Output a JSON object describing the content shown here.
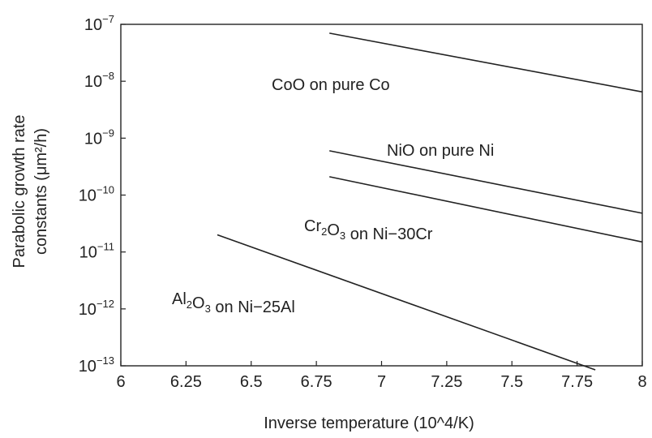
{
  "chart_data": {
    "type": "line",
    "title": "",
    "xlabel": "Inverse temperature (10^4/K)",
    "ylabel": [
      "Parabolic growth rate",
      "constants (μm²/h)"
    ],
    "x_scale": "linear",
    "y_scale": "log",
    "xlim": [
      6,
      8
    ],
    "ylim": [
      1e-13,
      1e-07
    ],
    "x_ticks": [
      "6",
      "6.25",
      "6.5",
      "6.75",
      "7",
      "7.25",
      "7.5",
      "7.75",
      "8"
    ],
    "y_ticks": [
      {
        "base": "10",
        "exp": "−7"
      },
      {
        "base": "10",
        "exp": "−8"
      },
      {
        "base": "10",
        "exp": "−9"
      },
      {
        "base": "10",
        "exp": "−10"
      },
      {
        "base": "10",
        "exp": "−11"
      },
      {
        "base": "10",
        "exp": "−12"
      },
      {
        "base": "10",
        "exp": "−13"
      }
    ],
    "grid": false,
    "series": [
      {
        "name": "CoO on pure Co",
        "label_parts": [
          {
            "t": "CoO on pure Co"
          }
        ],
        "x": [
          6.8,
          8.0
        ],
        "y": [
          7e-08,
          6.5e-09
        ]
      },
      {
        "name": "NiO on pure Ni",
        "label_parts": [
          {
            "t": "NiO on pure Ni"
          }
        ],
        "x": [
          6.8,
          8.0
        ],
        "y": [
          6e-10,
          4.8e-11
        ]
      },
      {
        "name": "Cr2O3 on Ni-30Cr",
        "label_parts": [
          {
            "t": "Cr"
          },
          {
            "t": "2",
            "sub": true
          },
          {
            "t": "O"
          },
          {
            "t": "3",
            "sub": true
          },
          {
            "t": " on Ni−30Cr"
          }
        ],
        "x": [
          6.8,
          8.0
        ],
        "y": [
          2.1e-10,
          1.5e-11
        ]
      },
      {
        "name": "Al2O3 on Ni-25Al",
        "label_parts": [
          {
            "t": "Al"
          },
          {
            "t": "2",
            "sub": true
          },
          {
            "t": "O"
          },
          {
            "t": "3",
            "sub": true
          },
          {
            "t": " on Ni−25Al"
          }
        ],
        "x": [
          6.37,
          7.82
        ],
        "y": [
          2e-11,
          8.5e-14
        ]
      }
    ]
  }
}
